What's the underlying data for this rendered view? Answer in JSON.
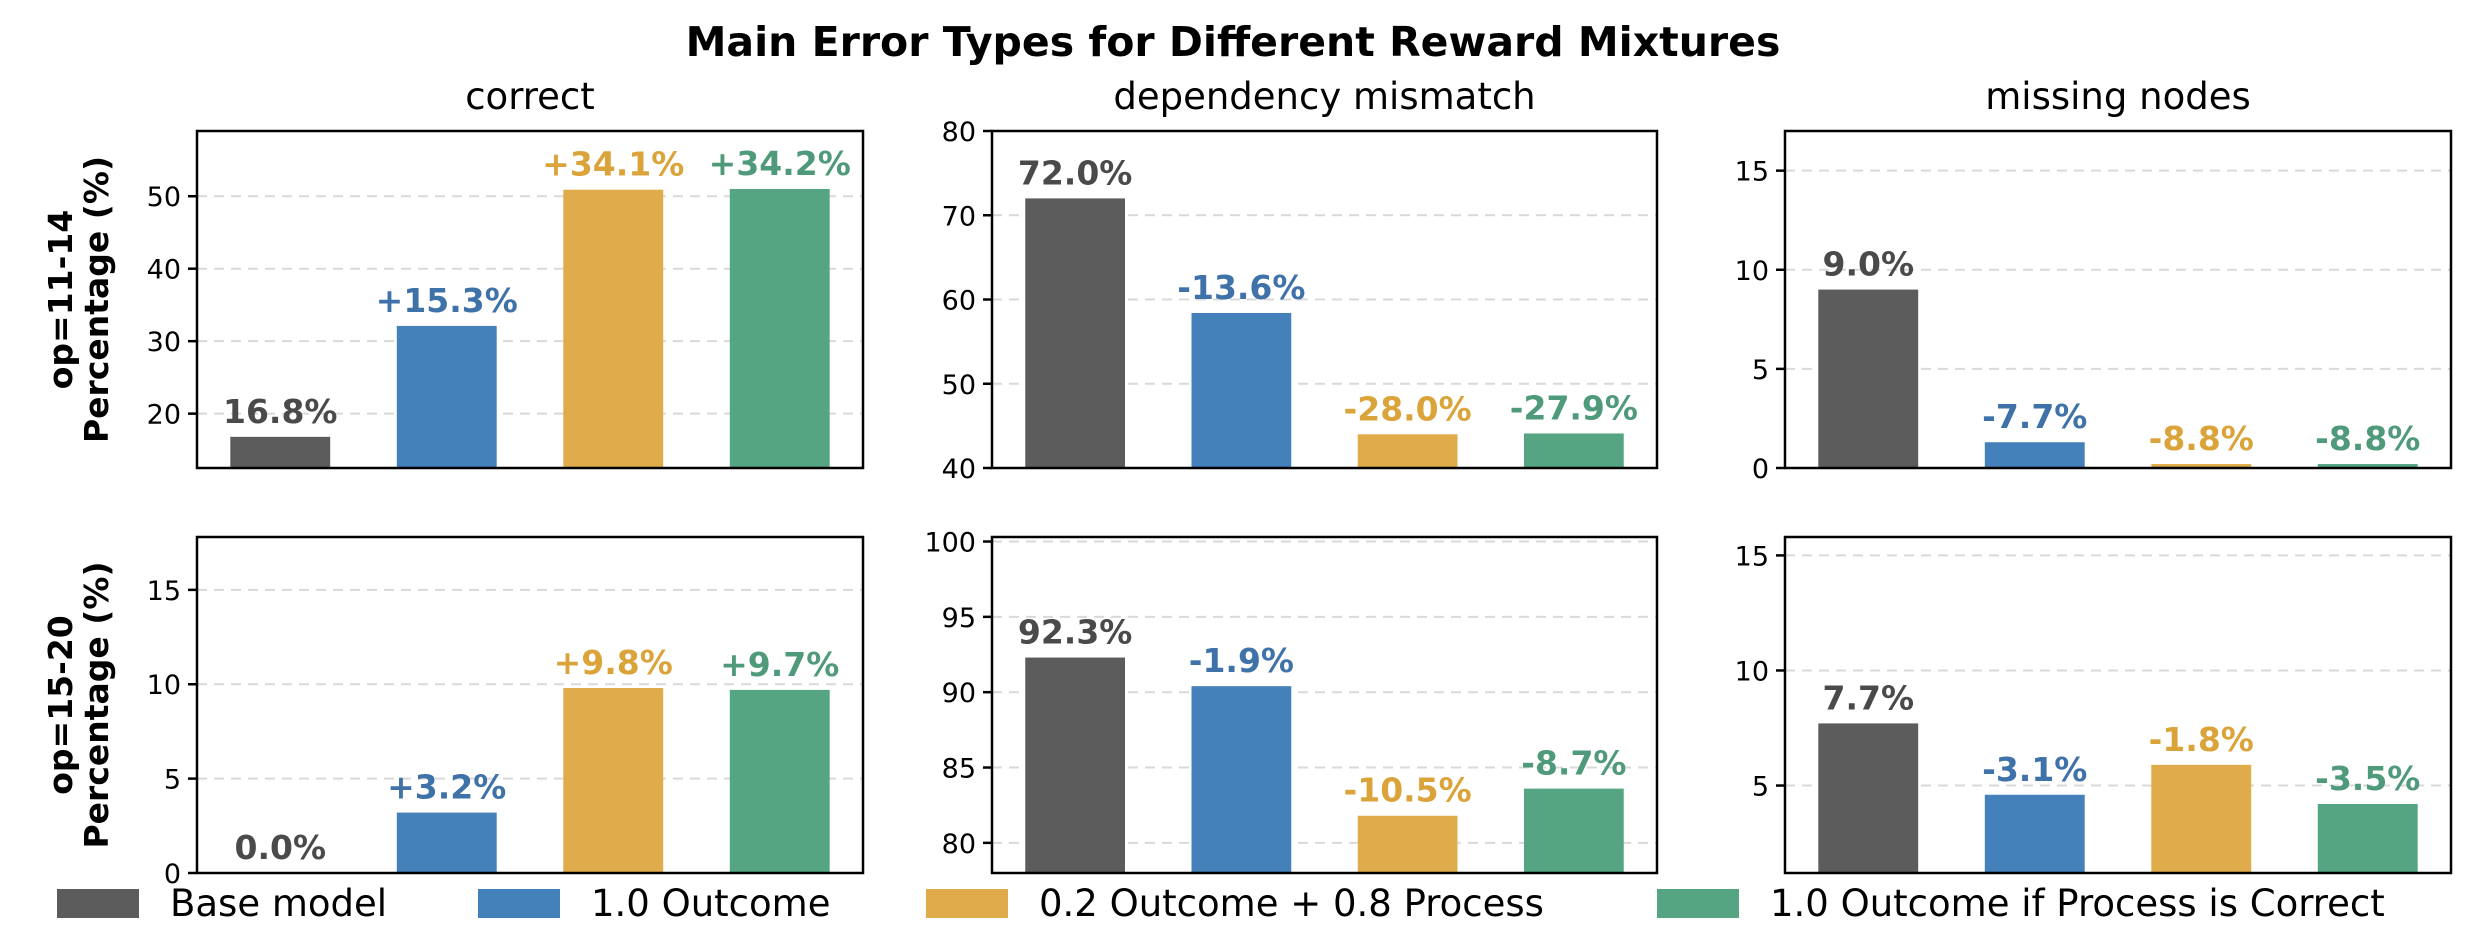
{
  "chart_data": {
    "type": "bar",
    "title": "Main Error Types for Different Reward Mixtures",
    "row_labels": [
      [
        "op=11-14",
        "Percentage (%)"
      ],
      [
        "op=15-20",
        "Percentage (%)"
      ]
    ],
    "series": [
      {
        "name": "Base model",
        "color": "#5c5c5c"
      },
      {
        "name": "1.0 Outcome",
        "color": "#4480b9"
      },
      {
        "name": "0.2 Outcome + 0.8 Process",
        "color": "#e0ab4a"
      },
      {
        "name": "1.0 Outcome if Process is Correct",
        "color": "#55a583"
      }
    ],
    "legend_position": "bottom",
    "grid": "y-dashed",
    "panels": [
      {
        "row": 0,
        "col": 0,
        "title": "correct",
        "ylim": [
          12.5,
          59
        ],
        "yticks": [
          20,
          30,
          40,
          50
        ],
        "values": [
          16.8,
          32.1,
          50.9,
          51.0
        ],
        "labels": [
          "16.8%",
          "+15.3%",
          "+34.1%",
          "+34.2%"
        ]
      },
      {
        "row": 0,
        "col": 1,
        "title": "dependency mismatch",
        "ylim": [
          40,
          80
        ],
        "yticks": [
          40,
          50,
          60,
          70,
          80
        ],
        "values": [
          72.0,
          58.4,
          44.0,
          44.1
        ],
        "labels": [
          "72.0%",
          "-13.6%",
          "-28.0%",
          "-27.9%"
        ]
      },
      {
        "row": 0,
        "col": 2,
        "title": "missing nodes",
        "ylim": [
          0,
          17
        ],
        "yticks": [
          0,
          5,
          10,
          15
        ],
        "values": [
          9.0,
          1.3,
          0.2,
          0.2
        ],
        "labels": [
          "9.0%",
          "-7.7%",
          "-8.8%",
          "-8.8%"
        ]
      },
      {
        "row": 1,
        "col": 0,
        "title": "",
        "ylim": [
          0,
          17.8
        ],
        "yticks": [
          0,
          5,
          10,
          15
        ],
        "values": [
          0.0,
          3.2,
          9.8,
          9.7
        ],
        "labels": [
          "0.0%",
          "+3.2%",
          "+9.8%",
          "+9.7%"
        ]
      },
      {
        "row": 1,
        "col": 1,
        "title": "",
        "ylim": [
          78,
          100.3
        ],
        "yticks": [
          80,
          85,
          90,
          95,
          100
        ],
        "values": [
          92.3,
          90.4,
          81.8,
          83.6
        ],
        "labels": [
          "92.3%",
          "-1.9%",
          "-10.5%",
          "-8.7%"
        ]
      },
      {
        "row": 1,
        "col": 2,
        "title": "",
        "ylim": [
          1.2,
          15.8
        ],
        "yticks": [
          5,
          10,
          15
        ],
        "values": [
          7.7,
          4.6,
          5.9,
          4.2
        ],
        "labels": [
          "7.7%",
          "-3.1%",
          "-1.8%",
          "-3.5%"
        ]
      }
    ]
  }
}
